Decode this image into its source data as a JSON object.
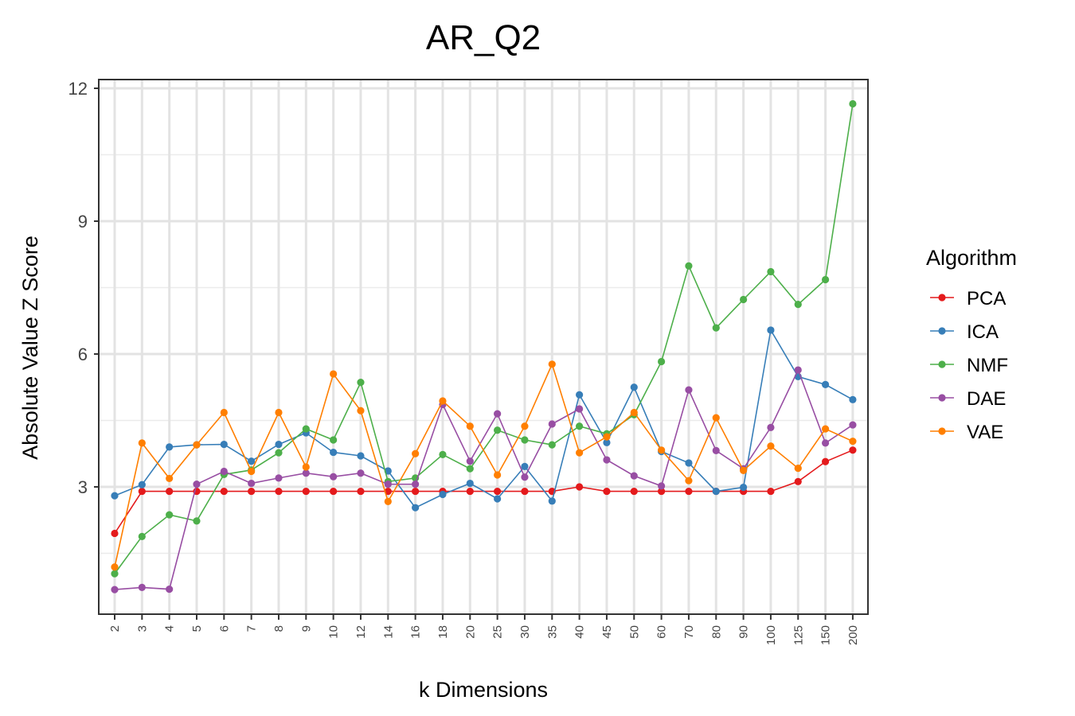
{
  "chart_data": {
    "type": "line",
    "title": "AR_Q2",
    "xlabel": "k Dimensions",
    "ylabel": "Absolute Value Z Score",
    "categories": [
      "2",
      "3",
      "4",
      "5",
      "6",
      "7",
      "8",
      "9",
      "10",
      "12",
      "14",
      "16",
      "18",
      "20",
      "25",
      "30",
      "35",
      "40",
      "45",
      "50",
      "60",
      "70",
      "80",
      "90",
      "100",
      "125",
      "150",
      "200"
    ],
    "ylim": [
      0.0,
      12.0
    ],
    "yticks": [
      3,
      6,
      9,
      12
    ],
    "grid": true,
    "legend": {
      "title": "Algorithm",
      "position": "right"
    },
    "series": [
      {
        "name": "PCA",
        "color": "#E41A1C",
        "values": [
          1.95,
          2.9,
          2.9,
          2.9,
          2.9,
          2.9,
          2.9,
          2.9,
          2.9,
          2.9,
          2.9,
          2.9,
          2.9,
          2.9,
          2.9,
          2.9,
          2.9,
          3.0,
          2.9,
          2.9,
          2.9,
          2.9,
          2.9,
          2.9,
          2.9,
          3.12,
          3.57,
          3.83
        ]
      },
      {
        "name": "ICA",
        "color": "#377EB8",
        "values": [
          2.8,
          3.05,
          3.9,
          3.95,
          3.96,
          3.58,
          3.96,
          4.22,
          3.78,
          3.7,
          3.36,
          2.53,
          2.83,
          3.08,
          2.73,
          3.46,
          2.68,
          5.08,
          4.0,
          5.25,
          3.8,
          3.54,
          2.9,
          2.99,
          6.54,
          5.49,
          5.31,
          4.97
        ]
      },
      {
        "name": "NMF",
        "color": "#4DAF4A",
        "values": [
          1.04,
          1.88,
          2.37,
          2.23,
          3.28,
          3.38,
          3.77,
          4.31,
          4.06,
          5.36,
          3.12,
          3.2,
          3.73,
          3.41,
          4.28,
          4.06,
          3.95,
          4.37,
          4.2,
          4.63,
          5.83,
          7.99,
          6.59,
          7.23,
          7.86,
          7.12,
          7.68,
          11.65
        ]
      },
      {
        "name": "DAE",
        "color": "#984EA3",
        "values": [
          0.68,
          0.73,
          0.69,
          3.06,
          3.35,
          3.08,
          3.2,
          3.31,
          3.23,
          3.31,
          3.06,
          3.06,
          4.86,
          3.58,
          4.65,
          3.22,
          4.42,
          4.76,
          3.61,
          3.25,
          3.02,
          5.19,
          3.82,
          3.41,
          4.34,
          5.64,
          3.99,
          4.4
        ]
      },
      {
        "name": "VAE",
        "color": "#FF7F00",
        "values": [
          1.19,
          3.99,
          3.19,
          3.95,
          4.68,
          3.35,
          4.68,
          3.45,
          5.55,
          4.72,
          2.67,
          3.75,
          4.94,
          4.37,
          3.27,
          4.37,
          5.77,
          3.77,
          4.13,
          4.68,
          3.83,
          3.14,
          4.56,
          3.37,
          3.92,
          3.42,
          4.31,
          4.03
        ]
      }
    ]
  }
}
